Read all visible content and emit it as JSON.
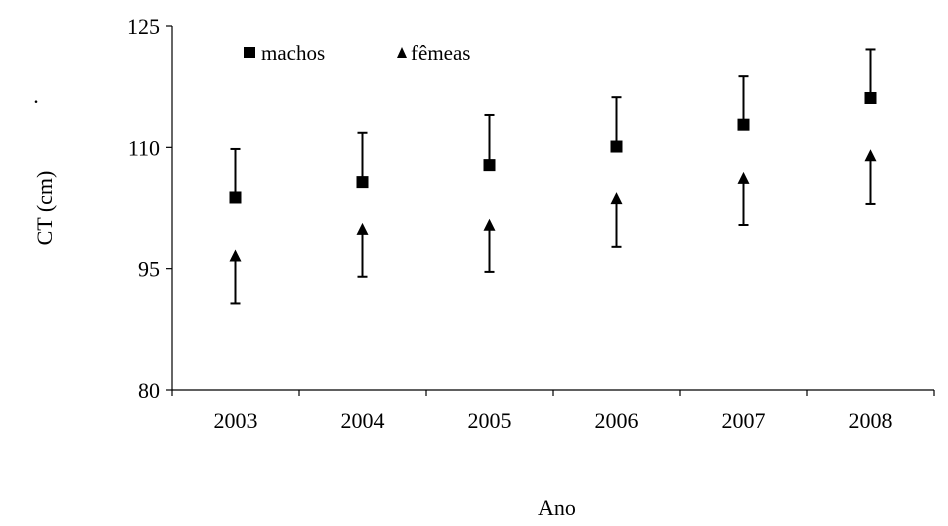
{
  "chart_data": {
    "type": "scatter",
    "title": "",
    "xlabel": "Ano",
    "ylabel": "CT (cm)",
    "stray_mark": ".",
    "categories": [
      "2003",
      "2004",
      "2005",
      "2006",
      "2007",
      "2008"
    ],
    "ylim": [
      80,
      125
    ],
    "yticks": [
      "80",
      "95",
      "110",
      "125"
    ],
    "grid": false,
    "legend_position": "top-left",
    "series": [
      {
        "name": "machos",
        "marker": "square",
        "values": [
          103.8,
          105.7,
          107.8,
          110.1,
          112.8,
          116.1
        ],
        "error_bar_top": [
          109.8,
          111.8,
          114.0,
          116.2,
          118.8,
          122.1
        ],
        "error_bar_side": "upper"
      },
      {
        "name": "fêmeas",
        "marker": "triangle",
        "values": [
          96.5,
          99.8,
          100.3,
          103.6,
          106.1,
          108.9
        ],
        "error_bar_bottom": [
          90.7,
          94.0,
          94.6,
          97.7,
          100.4,
          103.0
        ],
        "error_bar_side": "lower"
      }
    ],
    "colors": {
      "marker": "#000000",
      "axis": "#000000",
      "background": "#ffffff"
    }
  }
}
